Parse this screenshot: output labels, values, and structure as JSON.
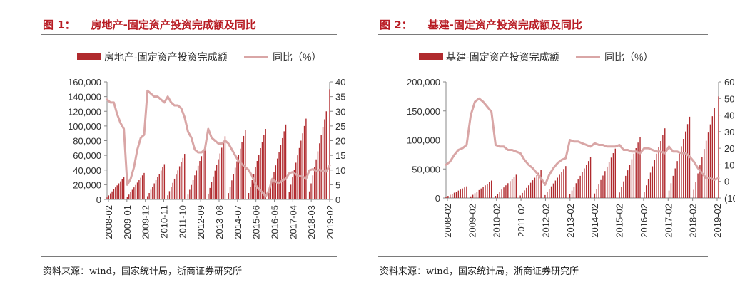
{
  "colors": {
    "bar": "#b02a2e",
    "line": "#d9a6a6",
    "title": "#b81c24",
    "axis": "#555555"
  },
  "charts": [
    {
      "fig_label": "图  1：",
      "title": "房地产-固定资产投资完成额及同比",
      "source": "资料来源：wind，国家统计局，浙商证券研究所",
      "legend_bar": "房地产-固定资产投资完成额",
      "legend_line": "同比（%）",
      "y_left_ticks": [
        "160,000",
        "140,000",
        "120,000",
        "100,000",
        "80,000",
        "60,000",
        "40,000",
        "20,000",
        "0"
      ],
      "y_right_ticks": [
        "40",
        "35",
        "30",
        "25",
        "20",
        "15",
        "10",
        "5",
        "0"
      ],
      "x_ticks": [
        "2008-02",
        "2009-01",
        "2009-12",
        "2010-11",
        "2011-10",
        "2012-09",
        "2013-08",
        "2014-07",
        "2015-06",
        "2016-05",
        "2017-04",
        "2018-03",
        "2019-02"
      ]
    },
    {
      "fig_label": "图  2：",
      "title": "基建-固定资产投资完成额及同比",
      "source": "资料来源：wind，国家统计局，浙商证券研究所",
      "legend_bar": "基建-固定资产投资完成额",
      "legend_line": "同比（%）",
      "y_left_ticks": [
        "200,000",
        "150,000",
        "100,000",
        "50,000",
        "0"
      ],
      "y_right_ticks": [
        "60",
        "50",
        "40",
        "30",
        "20",
        "10",
        "0",
        "(10)"
      ],
      "x_ticks": [
        "2008-02",
        "2009-02",
        "2010-02",
        "2011-02",
        "2012-02",
        "2013-02",
        "2014-02",
        "2015-02",
        "2016-02",
        "2017-02",
        "2018-02",
        "2019-02"
      ]
    }
  ],
  "chart_data": [
    {
      "type": "bar+line",
      "title": "房地产-固定资产投资完成额及同比",
      "y_left_range": [
        0,
        160000
      ],
      "y_right_range": [
        0,
        40
      ],
      "year_end_totals": [
        {
          "year": 2008,
          "value": 30000
        },
        {
          "year": 2009,
          "value": 36000
        },
        {
          "year": 2010,
          "value": 48000
        },
        {
          "year": 2011,
          "value": 62000
        },
        {
          "year": 2012,
          "value": 72000
        },
        {
          "year": 2013,
          "value": 86000
        },
        {
          "year": 2014,
          "value": 95000
        },
        {
          "year": 2015,
          "value": 96000
        },
        {
          "year": 2016,
          "value": 102000
        },
        {
          "year": 2017,
          "value": 110000
        },
        {
          "year": 2018,
          "value": 120000
        },
        {
          "year": 2019,
          "value": 150000
        }
      ],
      "yoy_points": [
        {
          "x": "2008-02",
          "y": 34
        },
        {
          "x": "2008-04",
          "y": 33
        },
        {
          "x": "2008-06",
          "y": 33
        },
        {
          "x": "2008-08",
          "y": 29
        },
        {
          "x": "2008-10",
          "y": 26
        },
        {
          "x": "2008-12",
          "y": 24
        },
        {
          "x": "2009-02",
          "y": 5
        },
        {
          "x": "2009-04",
          "y": 7
        },
        {
          "x": "2009-06",
          "y": 11
        },
        {
          "x": "2009-08",
          "y": 17
        },
        {
          "x": "2009-10",
          "y": 21
        },
        {
          "x": "2009-12",
          "y": 22
        },
        {
          "x": "2010-02",
          "y": 37
        },
        {
          "x": "2010-04",
          "y": 36
        },
        {
          "x": "2010-06",
          "y": 35
        },
        {
          "x": "2010-08",
          "y": 35
        },
        {
          "x": "2010-10",
          "y": 34
        },
        {
          "x": "2010-12",
          "y": 33
        },
        {
          "x": "2011-02",
          "y": 35
        },
        {
          "x": "2011-04",
          "y": 33
        },
        {
          "x": "2011-06",
          "y": 32
        },
        {
          "x": "2011-08",
          "y": 32
        },
        {
          "x": "2011-10",
          "y": 31
        },
        {
          "x": "2011-12",
          "y": 28
        },
        {
          "x": "2012-02",
          "y": 23
        },
        {
          "x": "2012-04",
          "y": 21
        },
        {
          "x": "2012-06",
          "y": 17
        },
        {
          "x": "2012-08",
          "y": 16
        },
        {
          "x": "2012-10",
          "y": 16
        },
        {
          "x": "2012-12",
          "y": 17
        },
        {
          "x": "2013-02",
          "y": 24
        },
        {
          "x": "2013-04",
          "y": 21
        },
        {
          "x": "2013-06",
          "y": 20
        },
        {
          "x": "2013-08",
          "y": 19
        },
        {
          "x": "2013-10",
          "y": 19
        },
        {
          "x": "2013-12",
          "y": 20
        },
        {
          "x": "2014-02",
          "y": 19
        },
        {
          "x": "2014-04",
          "y": 17
        },
        {
          "x": "2014-06",
          "y": 15
        },
        {
          "x": "2014-08",
          "y": 13
        },
        {
          "x": "2014-10",
          "y": 12
        },
        {
          "x": "2014-12",
          "y": 11
        },
        {
          "x": "2015-02",
          "y": 10
        },
        {
          "x": "2015-04",
          "y": 8
        },
        {
          "x": "2015-06",
          "y": 5
        },
        {
          "x": "2015-08",
          "y": 3.5
        },
        {
          "x": "2015-10",
          "y": 2.5
        },
        {
          "x": "2015-12",
          "y": 1
        },
        {
          "x": "2016-02",
          "y": 3
        },
        {
          "x": "2016-04",
          "y": 7
        },
        {
          "x": "2016-06",
          "y": 6
        },
        {
          "x": "2016-08",
          "y": 5.5
        },
        {
          "x": "2016-10",
          "y": 6.5
        },
        {
          "x": "2016-12",
          "y": 7
        },
        {
          "x": "2017-02",
          "y": 8.9
        },
        {
          "x": "2017-04",
          "y": 9.3
        },
        {
          "x": "2017-06",
          "y": 8.5
        },
        {
          "x": "2017-08",
          "y": 7.9
        },
        {
          "x": "2017-10",
          "y": 7.8
        },
        {
          "x": "2017-12",
          "y": 7
        },
        {
          "x": "2018-02",
          "y": 9.9
        },
        {
          "x": "2018-04",
          "y": 10.3
        },
        {
          "x": "2018-06",
          "y": 9.7
        },
        {
          "x": "2018-08",
          "y": 10.1
        },
        {
          "x": "2018-10",
          "y": 9.7
        },
        {
          "x": "2018-12",
          "y": 9.5
        },
        {
          "x": "2019-02",
          "y": 11.6
        }
      ]
    },
    {
      "type": "bar+line",
      "title": "基建-固定资产投资完成额及同比",
      "y_left_range": [
        0,
        200000
      ],
      "y_right_range": [
        -10,
        60
      ],
      "year_end_totals": [
        {
          "year": 2008,
          "value": 20000
        },
        {
          "year": 2009,
          "value": 30000
        },
        {
          "year": 2010,
          "value": 40000
        },
        {
          "year": 2011,
          "value": 48000
        },
        {
          "year": 2012,
          "value": 55000
        },
        {
          "year": 2013,
          "value": 70000
        },
        {
          "year": 2014,
          "value": 85000
        },
        {
          "year": 2015,
          "value": 105000
        },
        {
          "year": 2016,
          "value": 120000
        },
        {
          "year": 2017,
          "value": 140000
        },
        {
          "year": 2018,
          "value": 155000
        },
        {
          "year": 2019,
          "value": 175000
        }
      ],
      "yoy_points": [
        {
          "x": "2008-02",
          "y": 10
        },
        {
          "x": "2008-04",
          "y": 12
        },
        {
          "x": "2008-06",
          "y": 16
        },
        {
          "x": "2008-08",
          "y": 19
        },
        {
          "x": "2008-10",
          "y": 20
        },
        {
          "x": "2008-12",
          "y": 22
        },
        {
          "x": "2009-02",
          "y": 40
        },
        {
          "x": "2009-04",
          "y": 48
        },
        {
          "x": "2009-06",
          "y": 50
        },
        {
          "x": "2009-08",
          "y": 48
        },
        {
          "x": "2009-10",
          "y": 45
        },
        {
          "x": "2009-12",
          "y": 42
        },
        {
          "x": "2010-02",
          "y": 22
        },
        {
          "x": "2010-04",
          "y": 21
        },
        {
          "x": "2010-06",
          "y": 21
        },
        {
          "x": "2010-08",
          "y": 19
        },
        {
          "x": "2010-10",
          "y": 19
        },
        {
          "x": "2010-12",
          "y": 18
        },
        {
          "x": "2011-02",
          "y": 17
        },
        {
          "x": "2011-04",
          "y": 13
        },
        {
          "x": "2011-06",
          "y": 10
        },
        {
          "x": "2011-08",
          "y": 8
        },
        {
          "x": "2011-10",
          "y": 5
        },
        {
          "x": "2011-12",
          "y": 2
        },
        {
          "x": "2012-02",
          "y": -2
        },
        {
          "x": "2012-04",
          "y": 4
        },
        {
          "x": "2012-06",
          "y": 8
        },
        {
          "x": "2012-08",
          "y": 11
        },
        {
          "x": "2012-10",
          "y": 13
        },
        {
          "x": "2012-12",
          "y": 14
        },
        {
          "x": "2013-02",
          "y": 25
        },
        {
          "x": "2013-04",
          "y": 24
        },
        {
          "x": "2013-06",
          "y": 24
        },
        {
          "x": "2013-08",
          "y": 23
        },
        {
          "x": "2013-10",
          "y": 22
        },
        {
          "x": "2013-12",
          "y": 21
        },
        {
          "x": "2014-02",
          "y": 23
        },
        {
          "x": "2014-04",
          "y": 22
        },
        {
          "x": "2014-06",
          "y": 22
        },
        {
          "x": "2014-08",
          "y": 21
        },
        {
          "x": "2014-10",
          "y": 21
        },
        {
          "x": "2014-12",
          "y": 21
        },
        {
          "x": "2015-02",
          "y": 22
        },
        {
          "x": "2015-04",
          "y": 19
        },
        {
          "x": "2015-06",
          "y": 19
        },
        {
          "x": "2015-08",
          "y": 18
        },
        {
          "x": "2015-10",
          "y": 18
        },
        {
          "x": "2015-12",
          "y": 17
        },
        {
          "x": "2016-02",
          "y": 20
        },
        {
          "x": "2016-04",
          "y": 20
        },
        {
          "x": "2016-06",
          "y": 19
        },
        {
          "x": "2016-08",
          "y": 18
        },
        {
          "x": "2016-10",
          "y": 18
        },
        {
          "x": "2016-12",
          "y": 17
        },
        {
          "x": "2017-02",
          "y": 21
        },
        {
          "x": "2017-04",
          "y": 18
        },
        {
          "x": "2017-06",
          "y": 18
        },
        {
          "x": "2017-08",
          "y": 17
        },
        {
          "x": "2017-10",
          "y": 17
        },
        {
          "x": "2017-12",
          "y": 15
        },
        {
          "x": "2018-02",
          "y": 12
        },
        {
          "x": "2018-04",
          "y": 8
        },
        {
          "x": "2018-06",
          "y": 5
        },
        {
          "x": "2018-08",
          "y": 2
        },
        {
          "x": "2018-10",
          "y": 2
        },
        {
          "x": "2018-12",
          "y": 1
        },
        {
          "x": "2019-02",
          "y": 2
        }
      ]
    }
  ]
}
